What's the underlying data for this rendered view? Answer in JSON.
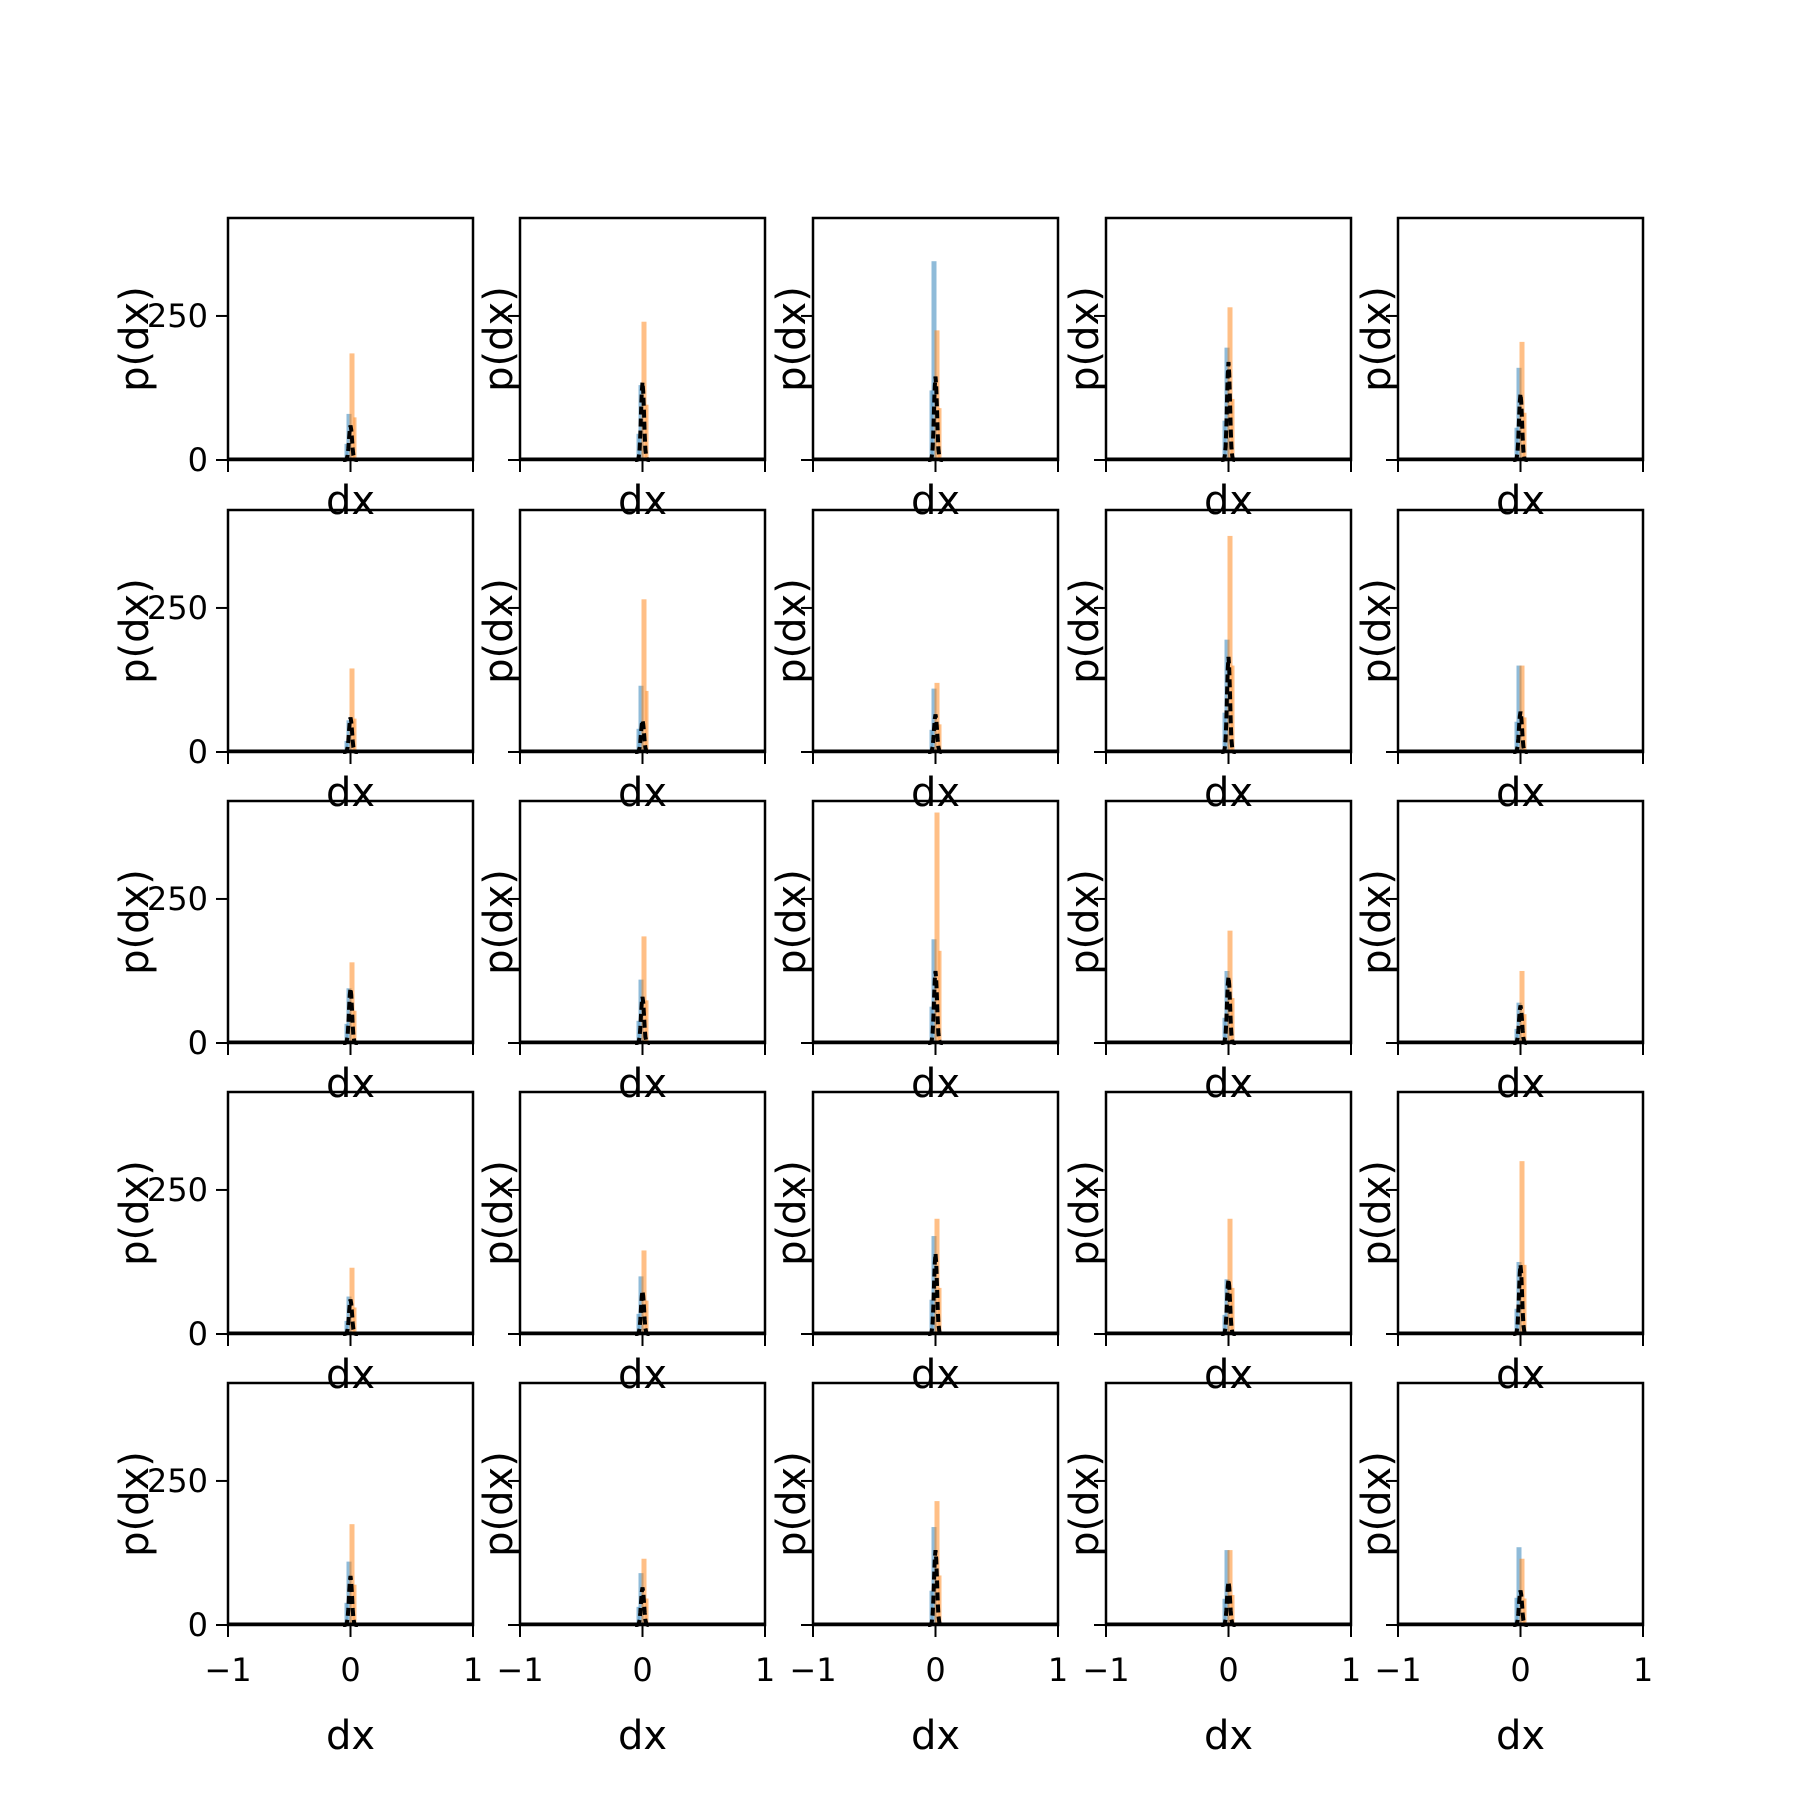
{
  "chart_data": {
    "type": "histogram-grid",
    "rows": 5,
    "cols": 5,
    "xlabel": "dx",
    "ylabel": "p(dx)",
    "xlim": [
      -1,
      1
    ],
    "ylim": [
      0,
      420
    ],
    "xticks": [
      -1,
      0,
      1
    ],
    "xtick_labels": [
      "−1",
      "0",
      "1"
    ],
    "yticks": [
      0,
      250
    ],
    "ytick_labels": [
      "0",
      "250"
    ],
    "colors": {
      "series_a": "#1f77b4",
      "series_b": "#ff7f0e",
      "density": "#000000"
    },
    "panels": [
      {
        "a": 80,
        "b": 185,
        "k": 60
      },
      {
        "a": 130,
        "b": 240,
        "k": 135
      },
      {
        "a": 345,
        "b": 225,
        "k": 145
      },
      {
        "a": 195,
        "b": 265,
        "k": 170
      },
      {
        "a": 160,
        "b": 205,
        "k": 115
      },
      {
        "a": 55,
        "b": 145,
        "k": 60
      },
      {
        "a": 115,
        "b": 265,
        "k": 55
      },
      {
        "a": 110,
        "b": 120,
        "k": 65
      },
      {
        "a": 195,
        "b": 375,
        "k": 165
      },
      {
        "a": 150,
        "b": 150,
        "k": 70
      },
      {
        "a": 95,
        "b": 140,
        "k": 95
      },
      {
        "a": 110,
        "b": 185,
        "k": 80
      },
      {
        "a": 180,
        "b": 400,
        "k": 125
      },
      {
        "a": 125,
        "b": 195,
        "k": 115
      },
      {
        "a": 70,
        "b": 125,
        "k": 65
      },
      {
        "a": 65,
        "b": 115,
        "k": 60
      },
      {
        "a": 100,
        "b": 145,
        "k": 75
      },
      {
        "a": 170,
        "b": 200,
        "k": 140
      },
      {
        "a": 95,
        "b": 200,
        "k": 95
      },
      {
        "a": 125,
        "b": 300,
        "k": 120
      },
      {
        "a": 110,
        "b": 175,
        "k": 85
      },
      {
        "a": 90,
        "b": 115,
        "k": 65
      },
      {
        "a": 170,
        "b": 215,
        "k": 130
      },
      {
        "a": 130,
        "b": 130,
        "k": 75
      },
      {
        "a": 135,
        "b": 115,
        "k": 60
      }
    ]
  }
}
